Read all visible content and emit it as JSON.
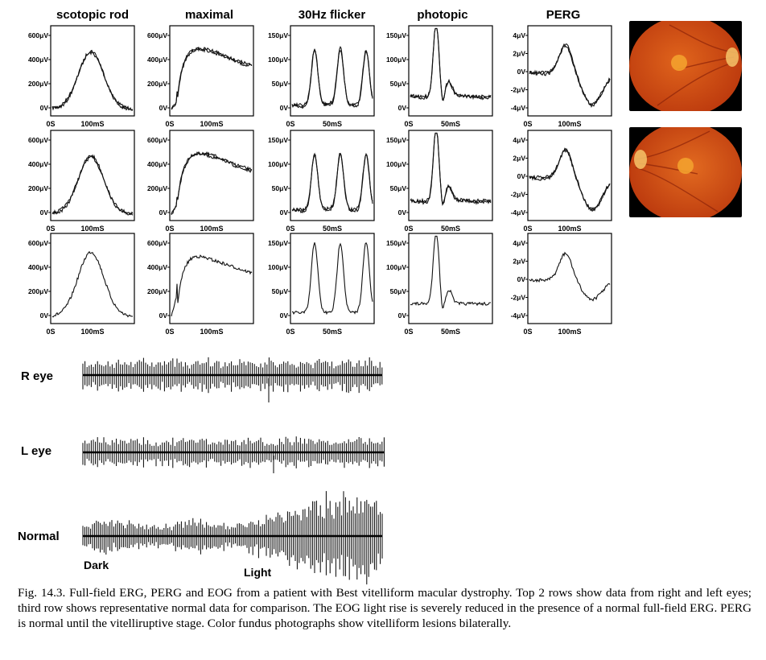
{
  "column_titles": [
    "scotopic rod",
    "maximal",
    "30Hz flicker",
    "photopic",
    "PERG"
  ],
  "erg_panels": {
    "scotopic": {
      "y_ticks": [
        "600μV",
        "400μV",
        "200μV",
        "0V"
      ],
      "x_ticks": [
        "0S",
        "100mS"
      ]
    },
    "maximal": {
      "y_ticks": [
        "600μV",
        "400μV",
        "200μV",
        "0V"
      ],
      "x_ticks": [
        "0S",
        "100mS"
      ]
    },
    "flicker": {
      "y_ticks": [
        "150μV",
        "100μV",
        "50μV",
        "0V"
      ],
      "x_ticks": [
        "0S",
        "50mS"
      ]
    },
    "photopic": {
      "y_ticks": [
        "150μV",
        "100μV",
        "50μV",
        "0V"
      ],
      "x_ticks": [
        "0S",
        "50mS"
      ]
    },
    "perg": {
      "y_ticks": [
        "4μV",
        "2μV",
        "0V",
        "-2μV",
        "-4μV"
      ],
      "x_ticks": [
        "0S",
        "100mS"
      ]
    }
  },
  "eog": {
    "row_labels": [
      "R eye",
      "L eye",
      "Normal"
    ],
    "dark_label": "Dark",
    "light_label": "Light"
  },
  "fundus_photos": [
    {
      "eye": "right",
      "colors": {
        "outer": "#b8350c",
        "mid": "#e0641c",
        "disc": "#f6c46a",
        "lesion": "#f3a12e"
      }
    },
    {
      "eye": "left",
      "colors": {
        "outer": "#b8350c",
        "mid": "#e26a20",
        "disc": "#f6c46a",
        "lesion": "#f3a12e"
      }
    }
  ],
  "caption": "Fig. 14.3. Full-field ERG, PERG and EOG from a patient with Best vitelliform macular dystrophy. Top 2 rows show data from right and left eyes; third row shows representative normal data for comparison. The EOG light rise is severely reduced in the presence of a normal full-field ERG. PERG is normal until the vitelliruptive stage. Color fundus photographs show vitelliform lesions bilaterally."
}
